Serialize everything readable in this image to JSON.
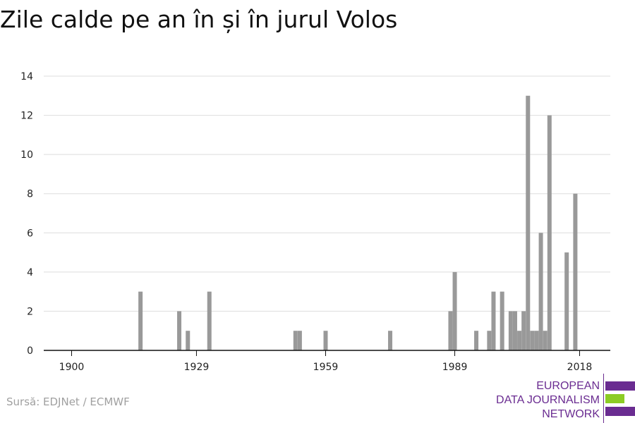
{
  "header": {
    "title": "Zile calde pe an în și în jurul Volos"
  },
  "footer": {
    "source": "Sursă: EDJNet / ECMWF"
  },
  "logo": {
    "lines": [
      "EUROPEAN",
      "DATA JOURNALISM",
      "NETWORK"
    ],
    "colors": {
      "purple": "#6a2c91",
      "green": "#8ccc24"
    }
  },
  "chart_data": {
    "type": "bar",
    "title": "Zile calde pe an în și în jurul Volos",
    "xlabel": "",
    "ylabel": "",
    "xlim": [
      1899,
      2019
    ],
    "ylim": [
      0,
      14
    ],
    "yticks": [
      0,
      2,
      4,
      6,
      8,
      10,
      12,
      14
    ],
    "xticks": [
      1900,
      1929,
      1959,
      1989,
      2018
    ],
    "grid": true,
    "bar_color": "#999999",
    "x": [
      1916,
      1925,
      1927,
      1932,
      1952,
      1953,
      1959,
      1974,
      1988,
      1989,
      1994,
      1997,
      1998,
      2000,
      2002,
      2003,
      2004,
      2005,
      2006,
      2007,
      2008,
      2009,
      2010,
      2011,
      2012,
      2015,
      2017
    ],
    "values": [
      3,
      2,
      1,
      3,
      1,
      1,
      1,
      1,
      2,
      4,
      1,
      1,
      3,
      3,
      2,
      2,
      1,
      2,
      13,
      1,
      1,
      6,
      1,
      12,
      0,
      5,
      8
    ]
  }
}
